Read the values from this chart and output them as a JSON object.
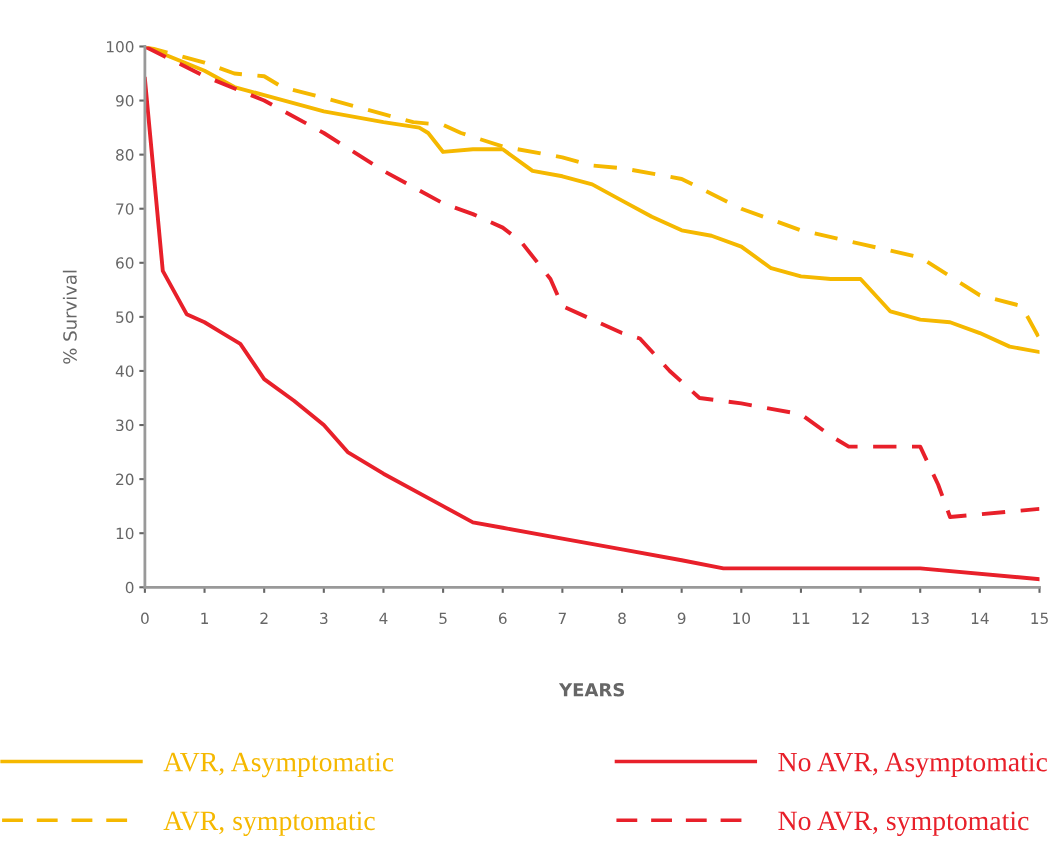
{
  "chart_data": {
    "type": "line",
    "xlabel": "YEARS",
    "ylabel": "% Survival",
    "xlim": [
      0,
      15
    ],
    "ylim": [
      0,
      100
    ],
    "xticks": [
      0,
      1,
      2,
      3,
      4,
      5,
      6,
      7,
      8,
      9,
      10,
      11,
      12,
      13,
      14,
      15
    ],
    "yticks": [
      0,
      10,
      20,
      30,
      40,
      50,
      60,
      70,
      80,
      90,
      100
    ],
    "grid": false,
    "legend": "bottom",
    "marker": "none",
    "series": [
      {
        "name": "AVR, Asymptomatic",
        "color": "#f5b800",
        "line_style": "solid",
        "x": [
          0,
          1,
          1.5,
          2,
          3,
          4,
          4.6,
          4.75,
          5,
          5.5,
          6,
          6.5,
          7,
          7.5,
          8,
          8.5,
          9,
          9.5,
          10,
          10.5,
          11,
          11.5,
          12,
          12.5,
          13,
          13.5,
          14,
          14.5,
          15
        ],
        "values": [
          100,
          95.5,
          92.5,
          91,
          88,
          86,
          85,
          84,
          80.5,
          81,
          81,
          77,
          76,
          74.5,
          71.5,
          68.5,
          66,
          65,
          63,
          59,
          57.5,
          57,
          57,
          51,
          49.5,
          49,
          47,
          44.5,
          43.5
        ]
      },
      {
        "name": "AVR, symptomatic",
        "color": "#f5b800",
        "line_style": "dashed",
        "x": [
          0,
          1,
          1.5,
          2,
          2.3,
          3,
          4,
          4.5,
          5,
          5.3,
          6,
          7,
          7.5,
          8,
          9,
          10,
          11,
          12,
          13,
          14,
          14.7,
          15
        ],
        "values": [
          100,
          97,
          95,
          94.5,
          92.5,
          90.5,
          87.5,
          86,
          85.5,
          84,
          81.5,
          79.5,
          78,
          77.5,
          75.5,
          70,
          66,
          63.5,
          61,
          54,
          52,
          46
        ]
      },
      {
        "name": "No AVR, Asymptomatic",
        "color": "#e8202a",
        "line_style": "solid",
        "x": [
          0,
          0.3,
          0.7,
          1,
          1.3,
          1.6,
          2,
          2.5,
          3,
          3.4,
          4,
          5,
          5.5,
          6,
          7,
          8,
          9,
          9.7,
          12,
          13,
          15
        ],
        "values": [
          94,
          58.5,
          50.5,
          49,
          47,
          45,
          38.5,
          34.5,
          30,
          25,
          21,
          15,
          12,
          11,
          9,
          7,
          5,
          3.5,
          3.5,
          3.5,
          1.5
        ]
      },
      {
        "name": "No AVR, symptomatic",
        "color": "#e8202a",
        "line_style": "dashed",
        "x": [
          0,
          1,
          2,
          3,
          4,
          5,
          5.5,
          6,
          6.3,
          6.8,
          7,
          8,
          8.3,
          8.8,
          9.3,
          10,
          10.5,
          11,
          11.5,
          11.8,
          13,
          13.3,
          13.5,
          14,
          15
        ],
        "values": [
          100,
          94.5,
          90,
          84,
          77,
          71,
          69,
          66.5,
          64,
          57,
          52,
          47,
          46,
          40,
          35,
          34,
          33,
          32,
          28,
          26,
          26,
          19,
          13,
          13.5,
          14.5
        ]
      }
    ]
  }
}
